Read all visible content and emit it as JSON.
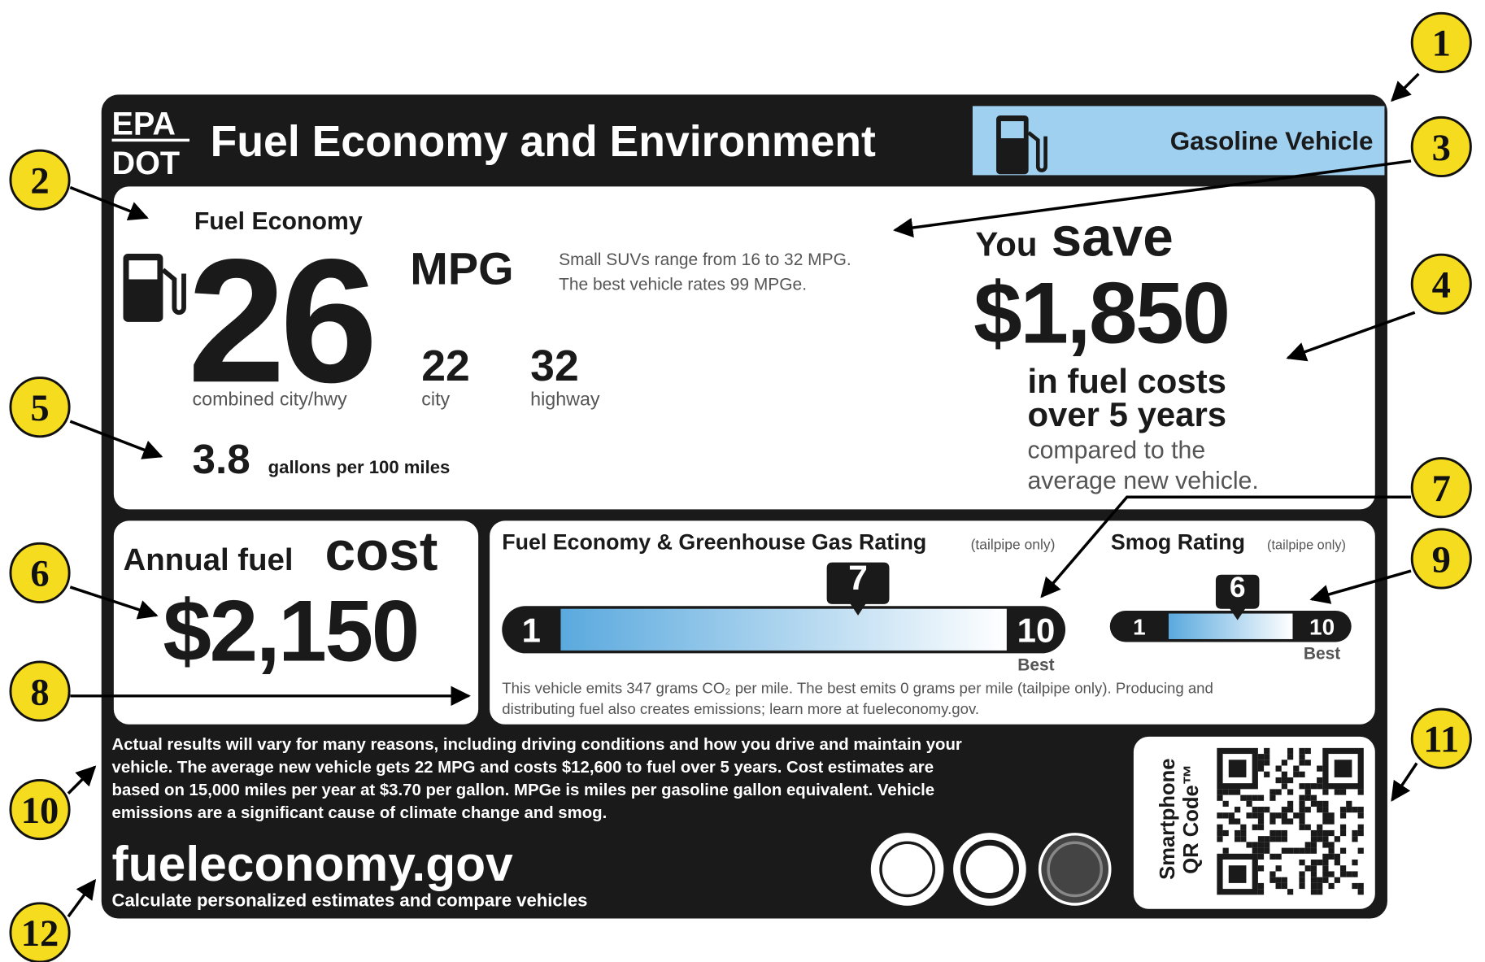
{
  "header": {
    "logo_top": "EPA",
    "logo_bottom": "DOT",
    "title": "Fuel Economy and Environment",
    "vehicle_type": "Gasoline Vehicle"
  },
  "fuel_economy": {
    "heading": "Fuel Economy",
    "combined": "26",
    "unit": "MPG",
    "combined_label": "combined city/hwy",
    "city": "22",
    "city_label": "city",
    "highway": "32",
    "highway_label": "highway",
    "gallons": "3.8",
    "gallons_label": "gallons per 100 miles",
    "range_note": [
      "Small SUVs range from 16 to 32 MPG.",
      "The best vehicle rates 99 MPGe."
    ]
  },
  "savings": {
    "you": "You",
    "save": "save",
    "amount": "$1,850",
    "lines": [
      "in fuel costs",
      "over 5 years",
      "compared to the",
      "average new vehicle."
    ]
  },
  "annual": {
    "label": "Annual fuel",
    "cost_word": "cost",
    "amount": "$2,150"
  },
  "ghg": {
    "heading": "Fuel Economy & Greenhouse Gas Rating",
    "qualifier": "(tailpipe only)",
    "min": 1,
    "max": 10,
    "rating": 7,
    "best": "Best"
  },
  "smog": {
    "heading": "Smog Rating",
    "qualifier": "(tailpipe only)",
    "min": 1,
    "max": 10,
    "rating": 6,
    "best": "Best"
  },
  "emissions_note": [
    "This vehicle emits 347 grams CO₂ per mile. The best emits 0 grams per mile (tailpipe only). Producing and",
    "distributing fuel also creates emissions; learn more at fueleconomy.gov."
  ],
  "disclaimer": [
    "Actual results will vary for many reasons, including driving conditions and how you drive and maintain your",
    "vehicle. The average new vehicle gets 22 MPG and costs $12,600 to fuel over 5 years. Cost estimates are",
    "based on 15,000 miles per year at $3.70 per gallon. MPGe is miles per gasoline gallon equivalent. Vehicle",
    "emissions are a significant cause of climate change and smog."
  ],
  "website": "fueleconomy.gov",
  "website_sub": "Calculate personalized estimates and compare vehicles",
  "qr_label": [
    "Smartphone",
    "QR Code™"
  ],
  "callouts": [
    "1",
    "2",
    "3",
    "4",
    "5",
    "6",
    "7",
    "8",
    "9",
    "10",
    "11",
    "12"
  ]
}
